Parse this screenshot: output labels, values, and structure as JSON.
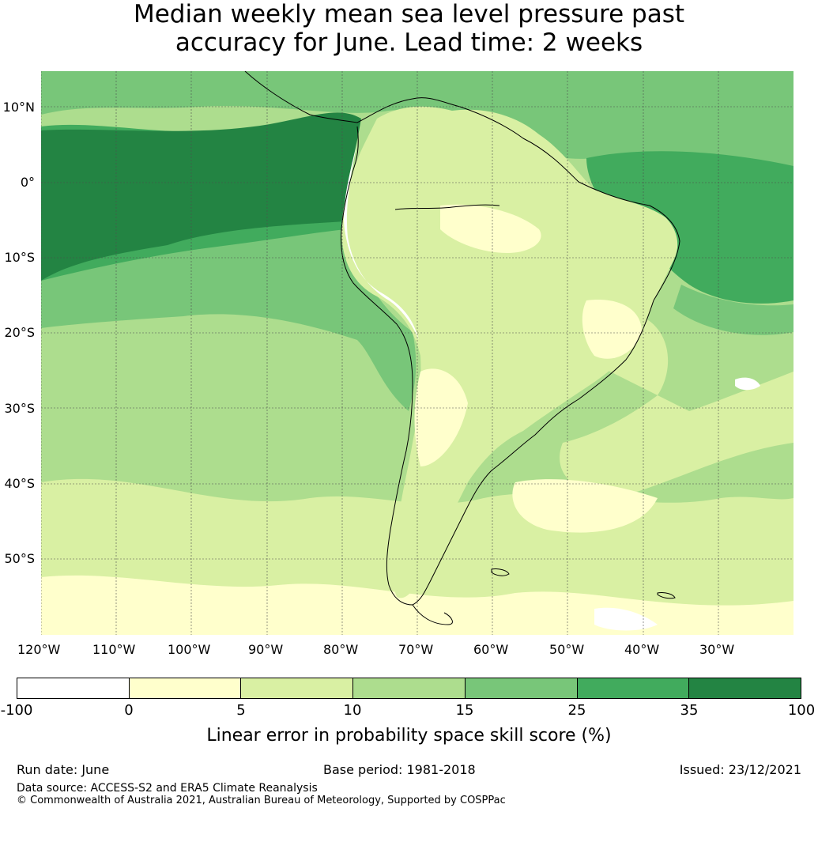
{
  "title": {
    "line1": "Median weekly mean sea level pressure past",
    "line2": "accuracy for June. Lead time: 2 weeks"
  },
  "map": {
    "latitudes": [
      "10°N",
      "0°",
      "10°S",
      "20°S",
      "30°S",
      "40°S",
      "50°S"
    ],
    "longitudes": [
      "120°W",
      "110°W",
      "100°W",
      "90°W",
      "80°W",
      "70°W",
      "60°W",
      "50°W",
      "40°W",
      "30°W"
    ],
    "grid": true,
    "coastline_color": "#000000"
  },
  "colorbar": {
    "colors": [
      "#ffffff",
      "#ffffcc",
      "#d9f0a3",
      "#addd8e",
      "#78c679",
      "#41ab5d",
      "#238443"
    ],
    "ticks": [
      "-100",
      "0",
      "5",
      "10",
      "15",
      "25",
      "35",
      "100"
    ],
    "label": "Linear error in probability space skill score (%)"
  },
  "footer": {
    "run_date": "Run date: June",
    "base_period": "Base period: 1981-2018",
    "issued": "Issued: 23/12/2021",
    "data_source": "Data source: ACCESS-S2 and ERA5 Climate Reanalysis",
    "copyright": "© Commonwealth of Australia 2021, Australian Bureau of Meteorology, Supported by COSPPac"
  }
}
